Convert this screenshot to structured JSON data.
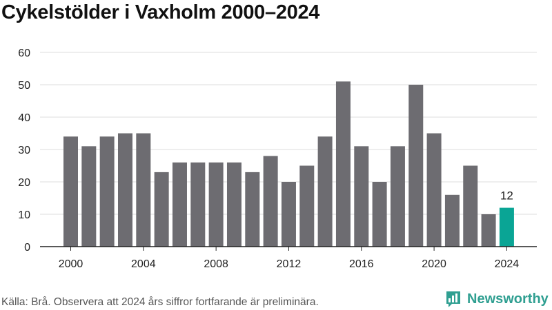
{
  "colors": {
    "bar": "#6d6c71",
    "highlight": "#0aa595",
    "grid": "#dcdcdc",
    "axis": "#222222",
    "brand": "#2f9f91"
  },
  "footer": {
    "source": "Källa: Brå. Observera att 2024 års siffror fortfarande är preliminära."
  },
  "logo": {
    "name": "Newsworthy",
    "icon": "newsworthy-logo-icon"
  },
  "chart_data": {
    "type": "bar",
    "title": "Cykelstölder i Vaxholm 2000–2024",
    "xlabel": "",
    "ylabel": "",
    "categories": [
      "2000",
      "2001",
      "2002",
      "2003",
      "2004",
      "2005",
      "2006",
      "2007",
      "2008",
      "2009",
      "2010",
      "2011",
      "2012",
      "2013",
      "2014",
      "2015",
      "2016",
      "2017",
      "2018",
      "2019",
      "2020",
      "2021",
      "2022",
      "2023",
      "2024"
    ],
    "values": [
      34,
      31,
      34,
      35,
      35,
      23,
      26,
      26,
      26,
      26,
      23,
      28,
      20,
      25,
      34,
      51,
      31,
      20,
      31,
      50,
      35,
      16,
      25,
      10,
      12
    ],
    "ylim": [
      0,
      60
    ],
    "yticks": [
      0,
      10,
      20,
      30,
      40,
      50,
      60
    ],
    "xticks": [
      "2000",
      "2004",
      "2008",
      "2012",
      "2016",
      "2020",
      "2024"
    ],
    "highlight": {
      "category": "2024",
      "label": "12"
    },
    "grid": true,
    "legend": "none"
  }
}
